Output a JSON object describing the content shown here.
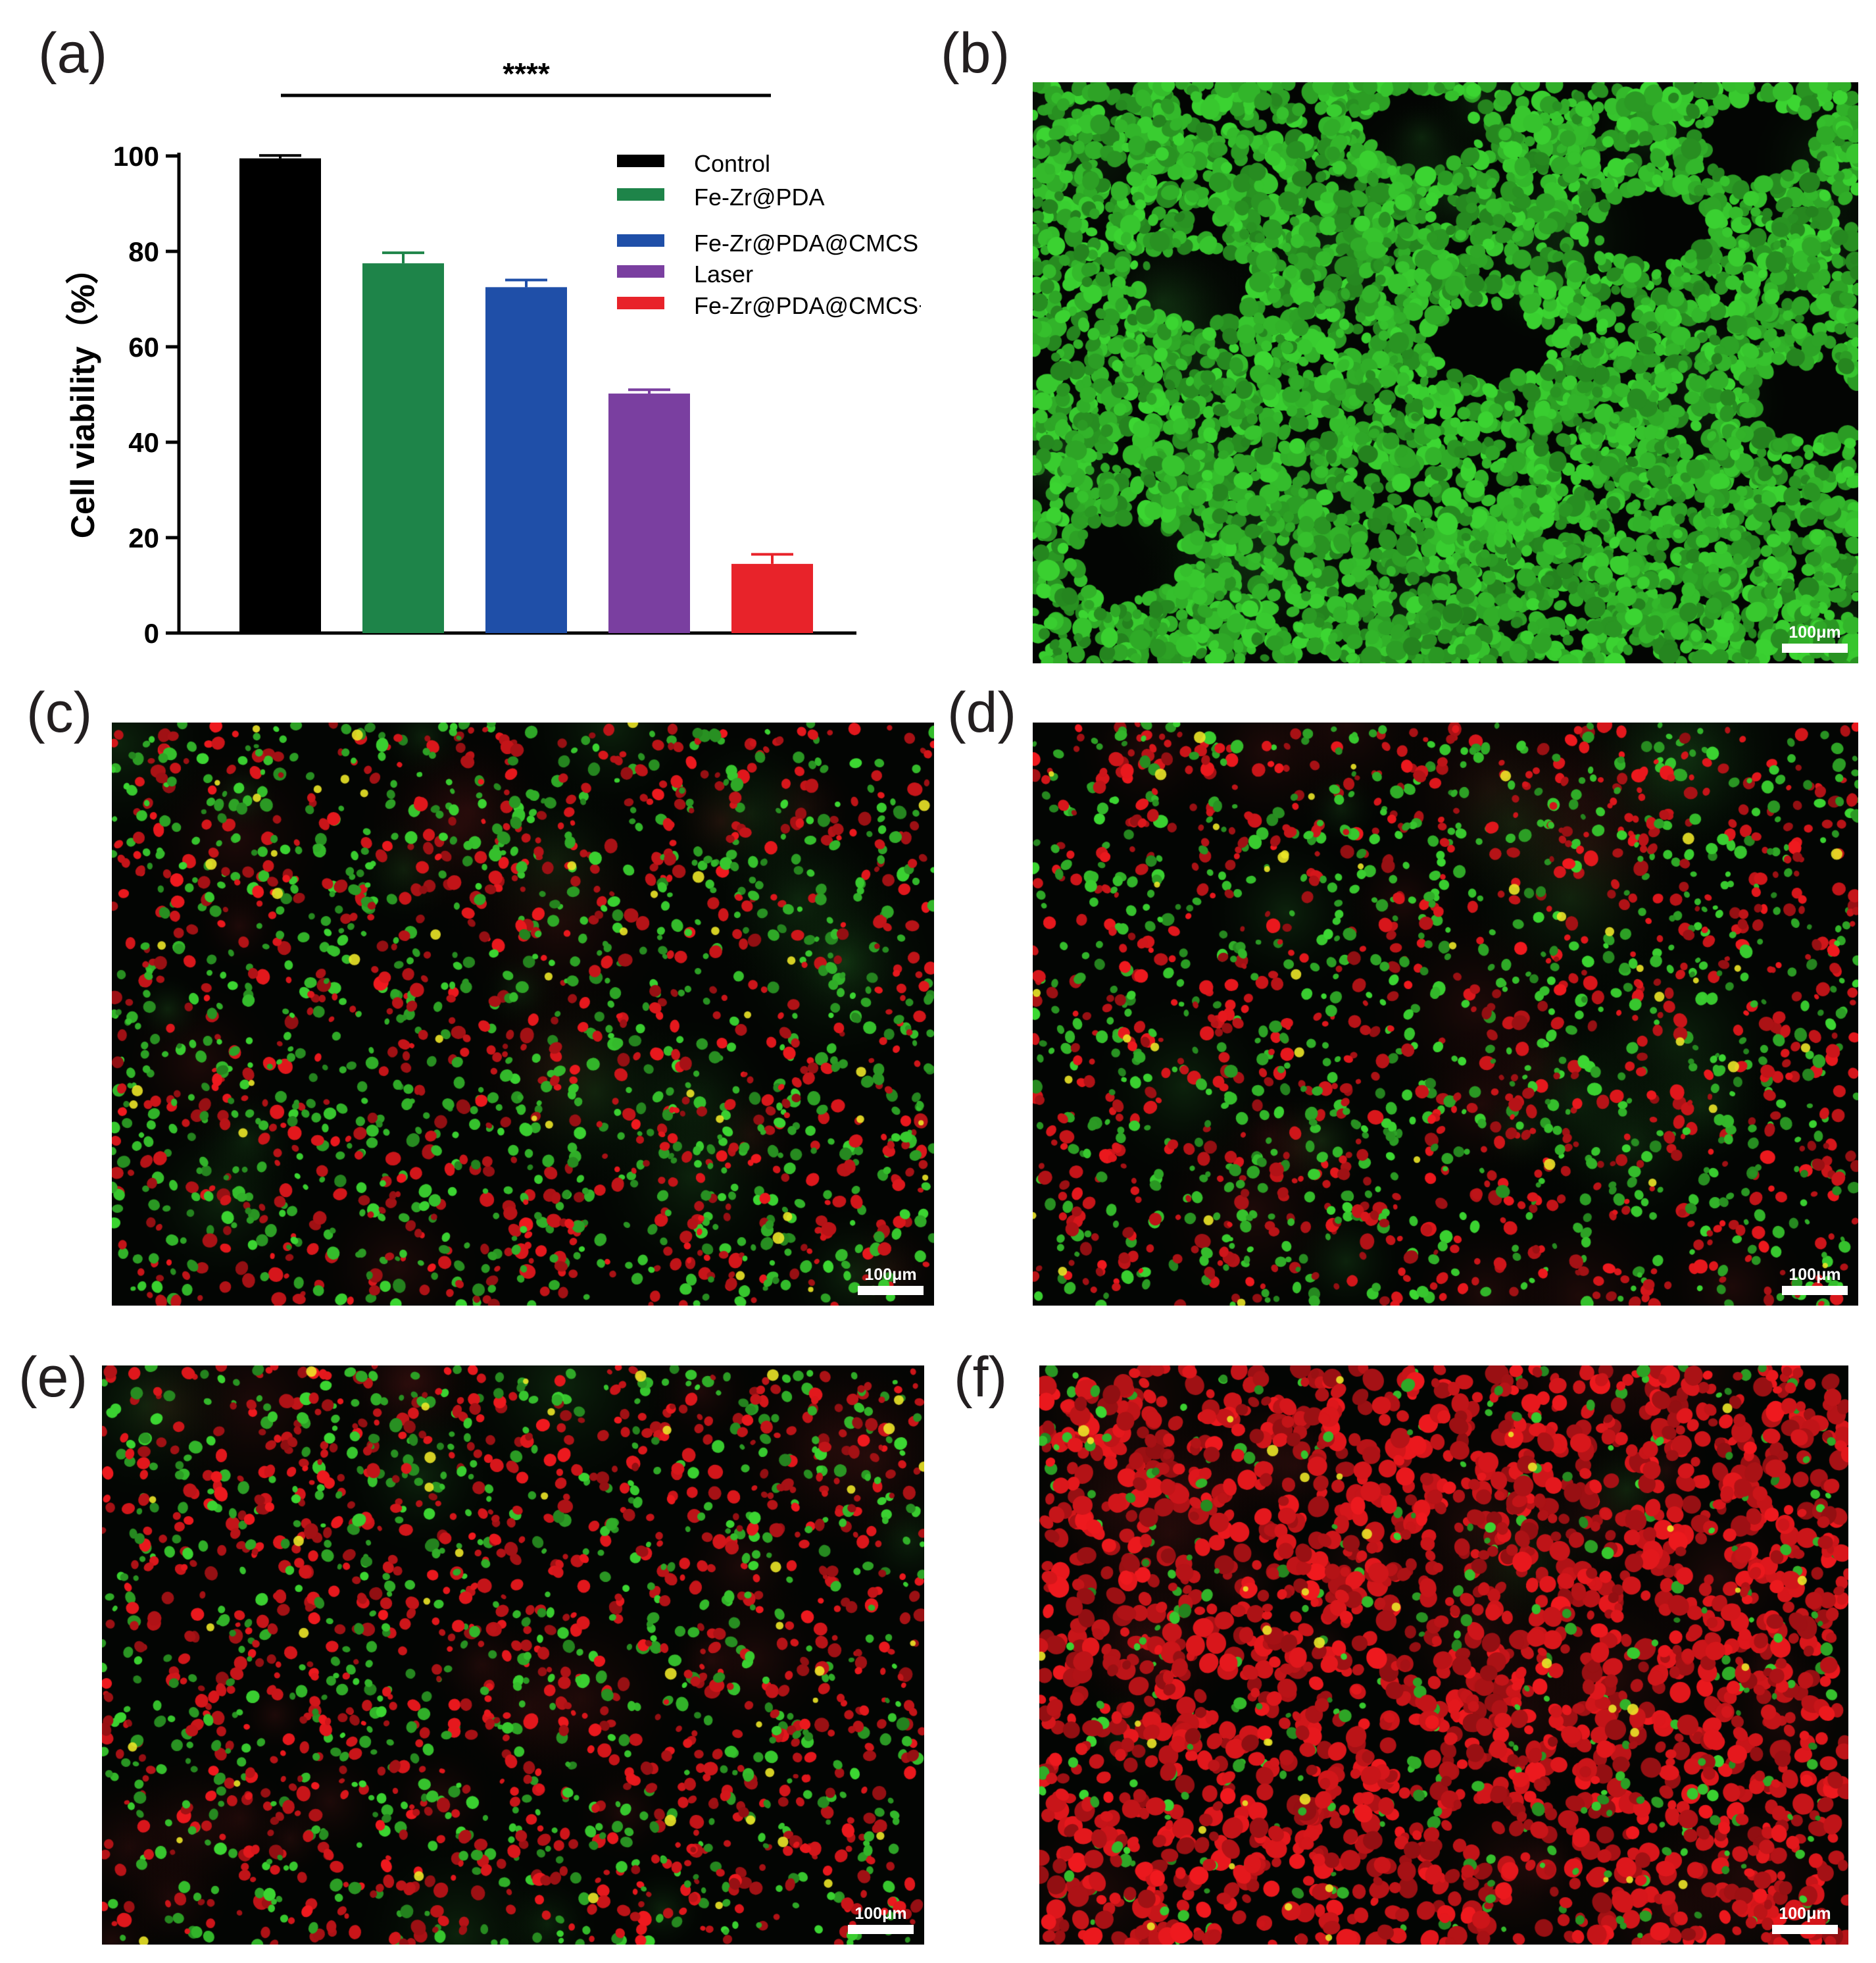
{
  "figure": {
    "panels": [
      {
        "letter": "(a)"
      },
      {
        "letter": "(b)",
        "scale_label": "100μm",
        "green": 1.0,
        "red": 0.0
      },
      {
        "letter": "(c)",
        "scale_label": "100μm",
        "green": 0.55,
        "red": 0.45
      },
      {
        "letter": "(d)",
        "scale_label": "100μm",
        "green": 0.5,
        "red": 0.5
      },
      {
        "letter": "(e)",
        "scale_label": "100μm",
        "green": 0.4,
        "red": 0.6
      },
      {
        "letter": "(f)",
        "scale_label": "100μm",
        "green": 0.15,
        "red": 0.85
      }
    ]
  },
  "chart_data": {
    "type": "bar",
    "title": "",
    "xlabel": "",
    "ylabel": "Cell viability（%）",
    "ylim": [
      0,
      100
    ],
    "yticks": [
      0,
      20,
      40,
      60,
      80,
      100
    ],
    "grid": false,
    "legend_placement": "top-right",
    "significance": "****",
    "categories": [
      "Control",
      "Fe-Zr@PDA",
      "Fe-Zr@PDA@CMCS",
      "Laser",
      "Fe-Zr@PDA@CMCS+Laser"
    ],
    "values": [
      99.5,
      77.5,
      72.5,
      50.2,
      14.5
    ],
    "errors": [
      0.6,
      2.2,
      1.5,
      0.8,
      2.0
    ],
    "colors": [
      "#000000",
      "#1e8449",
      "#1f4fa8",
      "#7a3fa0",
      "#e8232a"
    ]
  }
}
